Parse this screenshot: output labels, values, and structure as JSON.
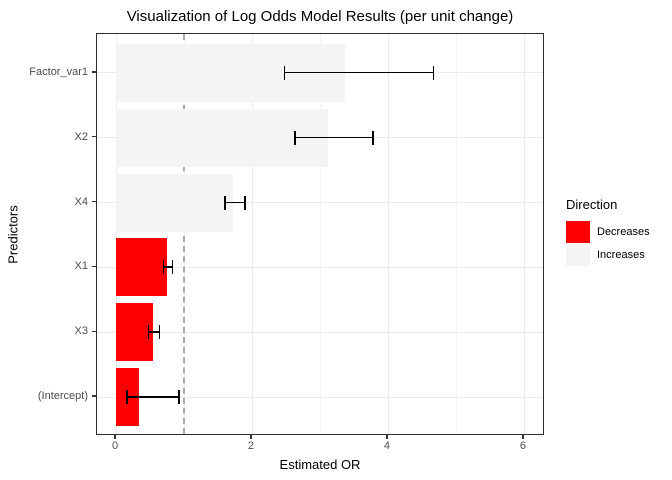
{
  "title": "Visualization of Log Odds Model Results (per unit change)",
  "legend": {
    "title": "Direction",
    "items": [
      {
        "label": "Decreases",
        "color": "#FF0000"
      },
      {
        "label": "Increases",
        "color": "#F4F4F4"
      }
    ]
  },
  "colors": {
    "panel_border": "#2F2F2F",
    "grid_major": "#EBEBEB",
    "grid_minor": "#F3F3F3",
    "reference_line": "#ABABAB",
    "error_bar": "#000000",
    "axis_text": "#4D4D4D",
    "title_text": "#000000"
  },
  "chart_data": {
    "type": "bar",
    "orientation": "horizontal",
    "title": "Visualization of Log Odds Model Results (per unit change)",
    "xlabel": "Estimated OR",
    "ylabel": "Predictors",
    "xlim": [
      -0.28,
      6.31
    ],
    "x_major_ticks": [
      0,
      2,
      4,
      6
    ],
    "x_minor_gridlines": [
      1,
      3,
      5
    ],
    "reference_line_x": 1,
    "grid": true,
    "legend_position": "right",
    "categories": [
      "Factor_var1",
      "X2",
      "X4",
      "X1",
      "X3",
      "(Intercept)"
    ],
    "rows": [
      {
        "label": "Factor_var1",
        "estimate": 3.37,
        "ci_low": 2.47,
        "ci_high": 4.68,
        "direction": "Increases"
      },
      {
        "label": "X2",
        "estimate": 3.12,
        "ci_low": 2.62,
        "ci_high": 3.79,
        "direction": "Increases"
      },
      {
        "label": "X4",
        "estimate": 1.72,
        "ci_low": 1.59,
        "ci_high": 1.91,
        "direction": "Increases"
      },
      {
        "label": "X1",
        "estimate": 0.75,
        "ci_low": 0.69,
        "ci_high": 0.84,
        "direction": "Decreases"
      },
      {
        "label": "X3",
        "estimate": 0.54,
        "ci_low": 0.47,
        "ci_high": 0.65,
        "direction": "Decreases"
      },
      {
        "label": "(Intercept)",
        "estimate": 0.34,
        "ci_low": 0.15,
        "ci_high": 0.94,
        "direction": "Decreases"
      }
    ]
  }
}
